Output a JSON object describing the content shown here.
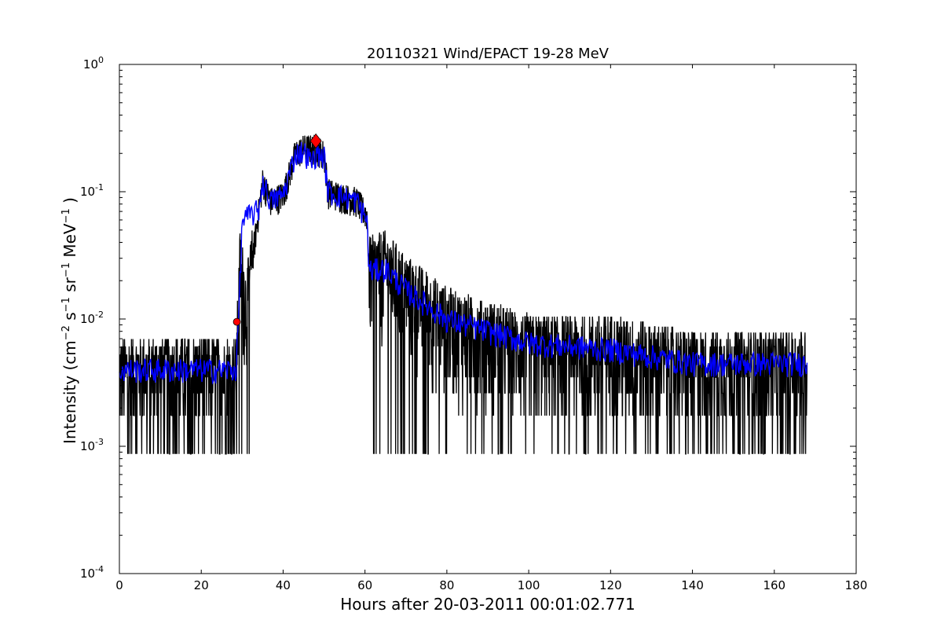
{
  "chart_data": {
    "type": "line",
    "title": "20110321 Wind/EPACT 19-28 MeV",
    "xlabel": "Hours after 20-03-2011 00:01:02.771",
    "ylabel": {
      "prefix": "Intensity (cm",
      "exp1": "−2",
      "s": " s",
      "exp2": "−1",
      "sr": " sr",
      "exp3": "−1",
      "mev": " MeV",
      "exp4": "−1",
      "suffix": " )"
    },
    "xlim": [
      0,
      180
    ],
    "ylim": [
      0.0001,
      1
    ],
    "yscale": "log",
    "xticks": [
      "0",
      "20",
      "40",
      "60",
      "80",
      "100",
      "120",
      "140",
      "160",
      "180"
    ],
    "yticks": [
      {
        "base": "10",
        "exp": "-4"
      },
      {
        "base": "10",
        "exp": "-3"
      },
      {
        "base": "10",
        "exp": "-2"
      },
      {
        "base": "10",
        "exp": "-1"
      },
      {
        "base": "10",
        "exp": "0"
      }
    ],
    "series": [
      {
        "color": "#000000",
        "kind": "raw",
        "profile": [
          [
            0,
            0.004
          ],
          [
            28.5,
            0.004
          ],
          [
            29.5,
            0.03
          ],
          [
            31,
            0.013
          ],
          [
            35,
            0.12
          ],
          [
            37,
            0.085
          ],
          [
            40,
            0.095
          ],
          [
            43,
            0.2
          ],
          [
            45,
            0.22
          ],
          [
            48,
            0.22
          ],
          [
            50,
            0.2
          ],
          [
            51,
            0.1
          ],
          [
            58,
            0.085
          ],
          [
            60.5,
            0.065
          ],
          [
            61,
            0.025
          ],
          [
            65,
            0.028
          ],
          [
            70,
            0.018
          ],
          [
            80,
            0.01
          ],
          [
            100,
            0.006
          ],
          [
            120,
            0.006
          ],
          [
            140,
            0.0045
          ],
          [
            168,
            0.0045
          ]
        ],
        "noise_floor": 0.00087
      },
      {
        "color": "#0000ff",
        "kind": "smoothed",
        "profile": [
          [
            0,
            0.004
          ],
          [
            28.5,
            0.004
          ],
          [
            29.5,
            0.02
          ],
          [
            30,
            0.06
          ],
          [
            34,
            0.072
          ],
          [
            35,
            0.12
          ],
          [
            37,
            0.085
          ],
          [
            40,
            0.095
          ],
          [
            43,
            0.2
          ],
          [
            45,
            0.21
          ],
          [
            47,
            0.17
          ],
          [
            48,
            0.2
          ],
          [
            50,
            0.19
          ],
          [
            51,
            0.1
          ],
          [
            58,
            0.085
          ],
          [
            60.5,
            0.06
          ],
          [
            61,
            0.024
          ],
          [
            65,
            0.025
          ],
          [
            70,
            0.017
          ],
          [
            80,
            0.01
          ],
          [
            100,
            0.0065
          ],
          [
            120,
            0.0058
          ],
          [
            140,
            0.0045
          ],
          [
            168,
            0.0045
          ]
        ]
      }
    ],
    "markers": [
      {
        "shape": "circle",
        "x": 28.7,
        "y": 0.0095,
        "color": "#ff0000"
      },
      {
        "shape": "diamond",
        "x": 48,
        "y": 0.25,
        "color": "#ff0000"
      }
    ],
    "grid": false,
    "legend": "none"
  }
}
